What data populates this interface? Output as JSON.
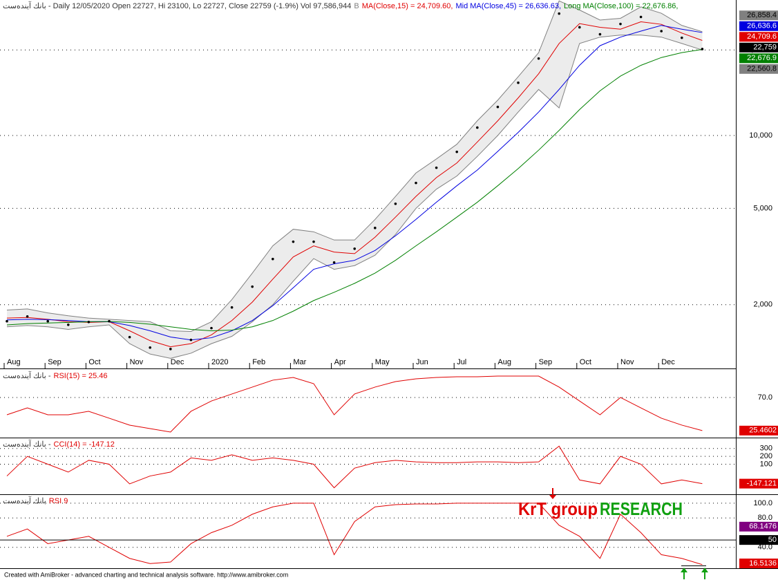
{
  "chart_data": [
    {
      "type": "line",
      "title": "بانك آینده‌ست - Daily 12/05/2020 Open 22727, Hi 23100, Lo 22727, Close 22759 (-1.9%) Vol 97,586,944",
      "log_scale": true,
      "grid": true,
      "categories": [
        "Aug",
        null,
        "Sep",
        null,
        "Oct",
        null,
        "Nov",
        null,
        "Dec",
        null,
        "2020",
        null,
        "Feb",
        null,
        "Mar",
        null,
        "Apr",
        null,
        "May",
        null,
        "Jun",
        null,
        "Jul",
        null,
        "Aug",
        null,
        "Sep",
        null,
        "Oct",
        null,
        "Nov",
        null,
        "Dec",
        null,
        null
      ],
      "ylim": [
        1090,
        36300
      ],
      "yticks": [
        {
          "value": 2000,
          "label": "2,000"
        },
        {
          "value": 5000,
          "label": "5,000"
        },
        {
          "value": 10000,
          "label": "10,000"
        },
        {
          "value": 22560.8,
          "label": "22,560.8"
        }
      ],
      "band_fill": "#ececec",
      "series": [
        {
          "name": "B",
          "style": "band",
          "color": "#808080",
          "end_label": "26,858.4",
          "values": [
            1900,
            1920,
            1850,
            1800,
            1760,
            1740,
            1720,
            1700,
            1560,
            1550,
            1700,
            2100,
            2700,
            3500,
            4100,
            4000,
            3700,
            3700,
            4500,
            5600,
            7000,
            8000,
            9200,
            11500,
            14000,
            17500,
            22000,
            36000,
            33000,
            30000,
            30500,
            34000,
            32000,
            28500,
            26858.4
          ]
        },
        {
          "style": "band",
          "color": "#808080",
          "end_label": "22,560.8",
          "values": [
            1620,
            1640,
            1620,
            1580,
            1620,
            1650,
            1380,
            1250,
            1200,
            1260,
            1380,
            1480,
            1700,
            2000,
            2500,
            3100,
            2800,
            2900,
            3200,
            3900,
            5000,
            6000,
            6800,
            8200,
            10000,
            12500,
            15500,
            13000,
            24000,
            25500,
            26000,
            26000,
            25500,
            24000,
            22560.8
          ]
        },
        {
          "name": "MA(Close,15) = 24,709.60,",
          "style": "line",
          "color": "#e00000",
          "end_label": "24,709.6",
          "values": [
            1760,
            1770,
            1740,
            1700,
            1690,
            1700,
            1560,
            1420,
            1340,
            1380,
            1500,
            1720,
            2050,
            2550,
            3150,
            3500,
            3300,
            3250,
            3800,
            4600,
            5600,
            6700,
            7700,
            9400,
            11500,
            14300,
            18000,
            24000,
            29000,
            28000,
            27500,
            29500,
            28800,
            26500,
            24709.6
          ]
        },
        {
          "name": "Mid MA(Close,45) = 26,636.63,",
          "style": "line",
          "color": "#0000e0",
          "end_label": "26,636.6",
          "values": [
            1730,
            1740,
            1735,
            1720,
            1700,
            1700,
            1640,
            1560,
            1470,
            1430,
            1460,
            1560,
            1720,
            1980,
            2350,
            2800,
            2950,
            3050,
            3350,
            3850,
            4500,
            5300,
            6200,
            7200,
            8600,
            10300,
            12500,
            15500,
            19500,
            23500,
            25500,
            27000,
            28500,
            27500,
            26636.6
          ]
        },
        {
          "name": "Long MA(Close,100) = 22,676.86,",
          "style": "line",
          "color": "#008000",
          "end_label": "22,676.9",
          "values": [
            1650,
            1670,
            1680,
            1690,
            1700,
            1705,
            1690,
            1660,
            1620,
            1580,
            1560,
            1570,
            1620,
            1720,
            1880,
            2080,
            2250,
            2450,
            2700,
            3050,
            3500,
            4000,
            4600,
            5300,
            6200,
            7300,
            8700,
            10500,
            12800,
            15300,
            17600,
            19500,
            21000,
            22000,
            22676.9
          ]
        },
        {
          "style": "dots",
          "color": "#000000",
          "end_label": "22,759",
          "values": [
            1708,
            1788,
            1708,
            1652,
            1696,
            1708,
            1469,
            1330,
            1312,
            1430,
            1600,
            1948,
            2374,
            3088,
            3640,
            3640,
            2988,
            3406,
            4150,
            5224,
            6368,
            7360,
            8560,
            10780,
            13120,
            16520,
            20800,
            31900,
            28000,
            26200,
            28900,
            30900,
            27000,
            25340,
            22759
          ]
        },
        {
          "style": "line",
          "width": 2.5,
          "color": "#e00000",
          "values": [
            1189,
            null,
            null,
            null,
            null,
            null,
            null,
            null,
            null,
            null,
            null,
            null,
            null,
            null,
            null,
            null,
            null,
            null,
            null,
            null,
            null,
            null,
            null,
            null,
            null,
            null,
            null,
            null,
            null,
            null,
            null,
            null,
            null,
            null,
            19500
          ]
        },
        {
          "style": "line",
          "width": 2.5,
          "color": "#000000",
          "values": [
            null,
            null,
            null,
            null,
            null,
            null,
            null,
            null,
            1213,
            null,
            null,
            null,
            null,
            null,
            null,
            null,
            null,
            null,
            null,
            null,
            null,
            null,
            null,
            null,
            null,
            null,
            null,
            null,
            null,
            null,
            null,
            null,
            null,
            null,
            18120
          ]
        }
      ]
    },
    {
      "type": "line",
      "title": "بانك آینده‌ست -",
      "ylim": [
        18.8,
        107.2
      ],
      "yticks": [
        {
          "value": 70,
          "label": "70.0"
        }
      ],
      "grid": true,
      "series": [
        {
          "name": "RSI(15) = 25.46",
          "style": "line",
          "color": "#e00000",
          "end_label": "25.4602",
          "values": [
            46.7,
            56.0,
            46.7,
            46.7,
            51.4,
            42.1,
            32.8,
            28.1,
            23.5,
            51.4,
            65.3,
            74.7,
            84.0,
            93.3,
            97.0,
            88.6,
            46.7,
            74.7,
            84.0,
            91.4,
            95.1,
            97.0,
            97.9,
            97.9,
            98.8,
            98.8,
            98.8,
            84.0,
            65.3,
            46.7,
            70.0,
            56.0,
            42.1,
            32.8,
            25.4602
          ]
        }
      ]
    },
    {
      "type": "line",
      "title": "بانك آینده‌ست -",
      "ylim": [
        -265,
        430
      ],
      "yticks": [
        100,
        200,
        300
      ],
      "grid": true,
      "series": [
        {
          "name": "CCI(14) = -147.12",
          "style": "line",
          "color": "#e00000",
          "end_label": "-147.121",
          "values": [
            -50,
            200,
            100,
            0,
            150,
            100,
            -150,
            -50,
            0,
            180,
            150,
            220,
            150,
            180,
            150,
            100,
            -200,
            50,
            120,
            150,
            130,
            120,
            120,
            130,
            130,
            120,
            130,
            330,
            -100,
            -150,
            200,
            100,
            -150,
            -100,
            -147.121
          ]
        }
      ]
    },
    {
      "type": "line",
      "title": "بانك آینده‌ست",
      "ylim": [
        11.6,
        111.2
      ],
      "yticks": [
        {
          "value": 100,
          "label": "100.0"
        },
        {
          "value": 80,
          "label": "80.0"
        },
        {
          "value": 40,
          "label": "40.0"
        }
      ],
      "grid": true,
      "reference_line": {
        "value": 50,
        "label": "50",
        "color": "#000000"
      },
      "annotations": [
        {
          "text": "KrT group",
          "color": "#e00000"
        },
        {
          "text": "RESEARCH",
          "color": "#10a010"
        }
      ],
      "series": [
        {
          "name": "RSI 9",
          "style": "line",
          "color": "#e00000",
          "end_label": "16.5136",
          "values": [
            55,
            65,
            45,
            50,
            55,
            40,
            25,
            18,
            20,
            45,
            60,
            70,
            85,
            95,
            100,
            100,
            30,
            75,
            95,
            98,
            99,
            99,
            100,
            100,
            100,
            100,
            100,
            70,
            55,
            25,
            85,
            60,
            30,
            25,
            16.5136
          ]
        },
        {
          "style": "line",
          "color": "#800080",
          "end_label": "68.1476",
          "values": [
            null,
            null,
            null,
            null,
            null,
            null,
            null,
            null,
            null,
            null,
            null,
            null,
            null,
            null,
            null,
            null,
            null,
            null,
            null,
            null,
            null,
            null,
            null,
            null,
            null,
            null,
            null,
            null,
            null,
            null,
            83.3,
            null,
            null,
            null,
            68.1476
          ]
        }
      ]
    }
  ],
  "footer": "Created with AmiBroker - advanced charting and technical analysis software. http://www.amibroker.com"
}
